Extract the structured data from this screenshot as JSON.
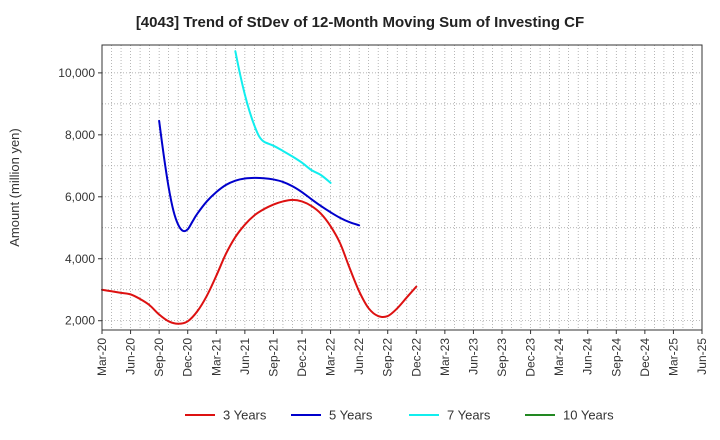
{
  "chart_data": {
    "type": "line",
    "title": "[4043]  Trend of StDev of 12-Month Moving Sum of Investing CF",
    "xlabel": "",
    "ylabel": "Amount (million yen)",
    "x_tick_labels": [
      "Mar-20",
      "Jun-20",
      "Sep-20",
      "Dec-20",
      "Mar-21",
      "Jun-21",
      "Sep-21",
      "Dec-21",
      "Mar-22",
      "Jun-22",
      "Sep-22",
      "Dec-22",
      "Mar-23",
      "Jun-23",
      "Sep-23",
      "Dec-23",
      "Mar-24",
      "Jun-24",
      "Sep-24",
      "Dec-24",
      "Mar-25",
      "Jun-25"
    ],
    "y_ticks": [
      2000,
      4000,
      6000,
      8000,
      10000
    ],
    "y_tick_labels": [
      "2,000",
      "4,000",
      "6,000",
      "8,000",
      "10,000"
    ],
    "ylim": [
      1700,
      10900
    ],
    "grid": true,
    "legend_position": "bottom",
    "series": [
      {
        "name": "3 Years",
        "color": "#dd1111",
        "points": [
          [
            0,
            3000
          ],
          [
            1,
            2950
          ],
          [
            2,
            2900
          ],
          [
            3,
            2850
          ],
          [
            4,
            2700
          ],
          [
            5,
            2500
          ],
          [
            6,
            2200
          ],
          [
            7,
            1980
          ],
          [
            8,
            1900
          ],
          [
            9,
            1980
          ],
          [
            10,
            2300
          ],
          [
            11,
            2800
          ],
          [
            12,
            3450
          ],
          [
            13,
            4150
          ],
          [
            14,
            4700
          ],
          [
            15,
            5100
          ],
          [
            16,
            5400
          ],
          [
            17,
            5600
          ],
          [
            18,
            5750
          ],
          [
            19,
            5850
          ],
          [
            20,
            5900
          ],
          [
            21,
            5850
          ],
          [
            22,
            5700
          ],
          [
            23,
            5450
          ],
          [
            24,
            5050
          ],
          [
            25,
            4500
          ],
          [
            26,
            3700
          ],
          [
            27,
            2950
          ],
          [
            28,
            2400
          ],
          [
            29,
            2150
          ],
          [
            30,
            2150
          ],
          [
            31,
            2400
          ],
          [
            32,
            2750
          ],
          [
            33,
            3100
          ]
        ]
      },
      {
        "name": "5 Years",
        "color": "#0000cc",
        "points": [
          [
            6,
            8450
          ],
          [
            6.5,
            7300
          ],
          [
            7,
            6300
          ],
          [
            7.5,
            5550
          ],
          [
            8,
            5100
          ],
          [
            8.5,
            4900
          ],
          [
            9,
            4950
          ],
          [
            9.5,
            5200
          ],
          [
            10,
            5450
          ],
          [
            11,
            5850
          ],
          [
            12,
            6150
          ],
          [
            13,
            6380
          ],
          [
            14,
            6520
          ],
          [
            15,
            6590
          ],
          [
            16,
            6610
          ],
          [
            17,
            6600
          ],
          [
            18,
            6560
          ],
          [
            19,
            6480
          ],
          [
            20,
            6340
          ],
          [
            21,
            6150
          ],
          [
            22,
            5920
          ],
          [
            23,
            5700
          ],
          [
            24,
            5500
          ],
          [
            25,
            5320
          ],
          [
            26,
            5180
          ],
          [
            27,
            5080
          ]
        ]
      },
      {
        "name": "7 Years",
        "color": "#11eeee",
        "points": [
          [
            14,
            10700
          ],
          [
            14.5,
            9950
          ],
          [
            15,
            9300
          ],
          [
            15.5,
            8750
          ],
          [
            16,
            8300
          ],
          [
            16.5,
            7950
          ],
          [
            17,
            7780
          ],
          [
            18,
            7650
          ],
          [
            19,
            7480
          ],
          [
            20,
            7300
          ],
          [
            21,
            7100
          ],
          [
            22,
            6860
          ],
          [
            23,
            6700
          ],
          [
            24,
            6450
          ]
        ]
      },
      {
        "name": "10 Years",
        "color": "#228822",
        "points": []
      }
    ]
  }
}
